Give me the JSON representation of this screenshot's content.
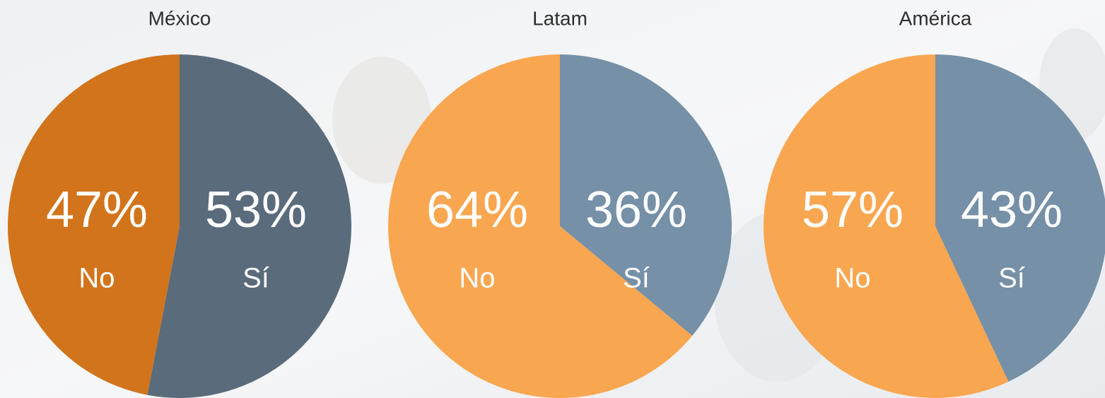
{
  "chart_data": [
    {
      "type": "pie",
      "title": "México",
      "categories": [
        "Sí",
        "No"
      ],
      "values": [
        53,
        47
      ],
      "value_labels": [
        "53%",
        "47%"
      ],
      "colors": [
        "#5a6b7b",
        "#d2741b"
      ]
    },
    {
      "type": "pie",
      "title": "Latam",
      "categories": [
        "Sí",
        "No"
      ],
      "values": [
        36,
        64
      ],
      "value_labels": [
        "36%",
        "64%"
      ],
      "colors": [
        "#7590a7",
        "#f9a651"
      ]
    },
    {
      "type": "pie",
      "title": "América",
      "categories": [
        "Sí",
        "No"
      ],
      "values": [
        43,
        57
      ],
      "value_labels": [
        "43%",
        "57%"
      ],
      "colors": [
        "#7590a7",
        "#f9a651"
      ]
    }
  ]
}
